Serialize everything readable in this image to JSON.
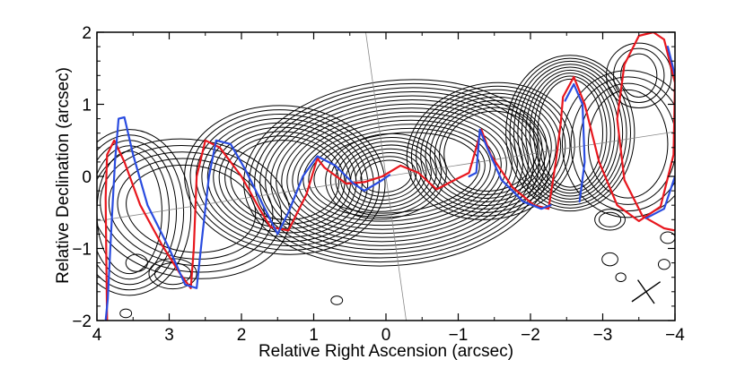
{
  "chart_data": {
    "type": "contour",
    "xlabel": "Relative Right Ascension (arcsec)",
    "ylabel": "Relative Declination (arcsec)",
    "xlim": [
      4,
      -4
    ],
    "ylim": [
      -2,
      2
    ],
    "x_ticks": [
      4,
      3,
      2,
      1,
      0,
      -1,
      -2,
      -3,
      -4
    ],
    "x_tick_labels": [
      "4",
      "3",
      "2",
      "1",
      "0",
      "−1",
      "−2",
      "−3",
      "−4"
    ],
    "y_ticks": [
      -2,
      -1,
      0,
      1,
      2
    ],
    "y_tick_labels": [
      "−2",
      "−1",
      "0",
      "1",
      "2"
    ],
    "grid": false,
    "colors": {
      "contours": "#000000",
      "model_red": "#e8171e",
      "model_blue": "#2a4ce0",
      "guide": "#888888"
    },
    "guide_lines": [
      {
        "points": [
          [
            0.28,
            2.0
          ],
          [
            -0.28,
            -2.0
          ]
        ]
      },
      {
        "points": [
          [
            4.0,
            -0.62
          ],
          [
            -4.0,
            0.62
          ]
        ]
      }
    ],
    "contour_groups": [
      {
        "name": "core",
        "cx": 0.0,
        "cy": 0.0,
        "rx": 0.35,
        "ry": 0.22,
        "angle": 8,
        "count": 8,
        "step": 0.07
      },
      {
        "name": "inner-jet",
        "cx": -0.15,
        "cy": 0.05,
        "rx": 1.15,
        "ry": 0.55,
        "angle": 6,
        "count": 14,
        "step": 0.075
      },
      {
        "name": "east-jet",
        "cx": 1.4,
        "cy": -0.05,
        "rx": 0.75,
        "ry": 0.55,
        "angle": -5,
        "count": 9,
        "step": 0.08
      },
      {
        "name": "west-knot",
        "cx": -1.45,
        "cy": 0.35,
        "rx": 0.65,
        "ry": 0.55,
        "angle": 12,
        "count": 9,
        "step": 0.065
      },
      {
        "name": "far-east",
        "cx": 2.7,
        "cy": -0.45,
        "rx": 0.9,
        "ry": 0.6,
        "angle": -8,
        "count": 5,
        "step": 0.12
      },
      {
        "name": "far-west",
        "cx": -2.55,
        "cy": 0.6,
        "rx": 0.45,
        "ry": 0.75,
        "angle": 0,
        "count": 9,
        "step": 0.055
      },
      {
        "name": "east-tail",
        "cx": 3.55,
        "cy": -0.5,
        "rx": 0.45,
        "ry": 0.85,
        "angle": 0,
        "count": 5,
        "step": 0.1
      },
      {
        "name": "west-tail",
        "cx": -3.35,
        "cy": 0.45,
        "rx": 0.55,
        "ry": 0.75,
        "angle": 0,
        "count": 4,
        "step": 0.12
      },
      {
        "name": "west-edge",
        "cx": -3.5,
        "cy": 1.4,
        "rx": 0.25,
        "ry": 0.3,
        "angle": 0,
        "count": 3,
        "step": 0.1
      },
      {
        "name": "blob-1",
        "cx": 2.95,
        "cy": -1.35,
        "rx": 0.25,
        "ry": 0.15,
        "angle": 0,
        "count": 2,
        "step": 0.08
      },
      {
        "name": "blob-2",
        "cx": 3.45,
        "cy": -1.2,
        "rx": 0.15,
        "ry": 0.12,
        "angle": 0,
        "count": 1,
        "step": 0.06
      },
      {
        "name": "blob-3",
        "cx": 0.68,
        "cy": -1.72,
        "rx": 0.08,
        "ry": 0.06,
        "angle": 0,
        "count": 1,
        "step": 0.04
      },
      {
        "name": "blob-4",
        "cx": 3.6,
        "cy": -1.9,
        "rx": 0.08,
        "ry": 0.06,
        "angle": 0,
        "count": 1,
        "step": 0.04
      },
      {
        "name": "blob-5",
        "cx": -3.1,
        "cy": -1.15,
        "rx": 0.11,
        "ry": 0.09,
        "angle": 0,
        "count": 1,
        "step": 0.04
      },
      {
        "name": "blob-6",
        "cx": -3.25,
        "cy": -1.4,
        "rx": 0.07,
        "ry": 0.06,
        "angle": 0,
        "count": 1,
        "step": 0.04
      },
      {
        "name": "blob-7",
        "cx": -3.85,
        "cy": -1.22,
        "rx": 0.08,
        "ry": 0.07,
        "angle": 0,
        "count": 1,
        "step": 0.04
      },
      {
        "name": "blob-8",
        "cx": -3.1,
        "cy": -0.6,
        "rx": 0.15,
        "ry": 0.1,
        "angle": 0,
        "count": 2,
        "step": 0.06
      },
      {
        "name": "blob-9",
        "cx": -3.9,
        "cy": -0.85,
        "rx": 0.1,
        "ry": 0.08,
        "angle": 0,
        "count": 1,
        "step": 0.04
      }
    ],
    "series": [
      {
        "color": "red",
        "points": [
          [
            3.86,
            -2.0
          ],
          [
            3.87,
            -1.2
          ],
          [
            3.88,
            -0.3
          ],
          [
            3.86,
            0.3
          ],
          [
            3.76,
            0.5
          ],
          [
            3.62,
            0.2
          ],
          [
            3.4,
            -0.4
          ],
          [
            3.1,
            -0.95
          ],
          [
            2.85,
            -1.35
          ],
          [
            2.7,
            -1.55
          ],
          [
            2.66,
            -1.0
          ],
          [
            2.62,
            0.0
          ],
          [
            2.5,
            0.5
          ],
          [
            2.3,
            0.4
          ],
          [
            2.0,
            0.0
          ],
          [
            1.75,
            -0.45
          ],
          [
            1.6,
            -0.7
          ],
          [
            1.35,
            -0.75
          ],
          [
            1.1,
            -0.25
          ],
          [
            0.95,
            0.25
          ],
          [
            0.85,
            0.12
          ],
          [
            0.55,
            -0.1
          ],
          [
            0.3,
            -0.08
          ],
          [
            0.05,
            0.0
          ],
          [
            -0.2,
            0.15
          ],
          [
            -0.45,
            0.05
          ],
          [
            -0.7,
            -0.18
          ],
          [
            -0.95,
            -0.05
          ],
          [
            -1.15,
            0.05
          ],
          [
            -1.32,
            0.65
          ],
          [
            -1.45,
            0.3
          ],
          [
            -1.75,
            -0.15
          ],
          [
            -2.05,
            -0.4
          ],
          [
            -2.25,
            -0.45
          ],
          [
            -2.35,
            0.2
          ],
          [
            -2.42,
            0.75
          ],
          [
            -2.45,
            1.1
          ],
          [
            -2.6,
            1.38
          ],
          [
            -2.75,
            1.0
          ],
          [
            -2.95,
            0.2
          ],
          [
            -3.2,
            -0.4
          ],
          [
            -3.5,
            -0.62
          ],
          [
            -3.8,
            -0.42
          ],
          [
            -3.98,
            0.3
          ],
          [
            -4.0,
            1.3
          ],
          [
            -3.85,
            1.9
          ],
          [
            -3.7,
            2.0
          ],
          [
            -3.5,
            1.95
          ],
          [
            -3.3,
            1.55
          ],
          [
            -3.2,
            0.8
          ],
          [
            -3.3,
            -0.05
          ],
          [
            -3.55,
            -0.55
          ],
          [
            -3.85,
            -0.72
          ],
          [
            -4.0,
            -0.75
          ]
        ]
      },
      {
        "color": "blue",
        "points": [
          [
            3.88,
            -2.0
          ],
          [
            3.85,
            -1.7
          ],
          [
            3.8,
            -0.7
          ],
          [
            3.75,
            0.2
          ],
          [
            3.7,
            0.8
          ],
          [
            3.62,
            0.82
          ],
          [
            3.5,
            0.3
          ],
          [
            3.3,
            -0.4
          ],
          [
            3.0,
            -1.0
          ],
          [
            2.78,
            -1.5
          ],
          [
            2.62,
            -1.55
          ],
          [
            2.55,
            -0.9
          ],
          [
            2.45,
            0.0
          ],
          [
            2.35,
            0.5
          ],
          [
            2.15,
            0.45
          ],
          [
            1.95,
            0.1
          ],
          [
            1.7,
            -0.4
          ],
          [
            1.5,
            -0.8
          ],
          [
            1.35,
            -0.5
          ],
          [
            1.15,
            0.0
          ],
          [
            0.95,
            0.28
          ],
          [
            0.7,
            0.15
          ],
          [
            0.45,
            -0.1
          ],
          [
            0.3,
            -0.2
          ],
          [
            0.05,
            -0.05
          ],
          [
            -0.05,
            0.02
          ]
        ]
      },
      {
        "color": "blue",
        "points": [
          [
            -1.15,
            0.0
          ],
          [
            -1.25,
            0.05
          ],
          [
            -1.3,
            0.65
          ],
          [
            -1.4,
            0.4
          ],
          [
            -1.6,
            -0.05
          ],
          [
            -1.9,
            -0.35
          ],
          [
            -2.15,
            -0.45
          ],
          [
            -2.28,
            -0.4
          ]
        ]
      },
      {
        "color": "blue",
        "points": [
          [
            -2.48,
            1.05
          ],
          [
            -2.6,
            1.28
          ],
          [
            -2.72,
            1.0
          ],
          [
            -2.75,
            0.2
          ],
          [
            -2.68,
            -0.35
          ]
        ]
      },
      {
        "color": "blue",
        "points": [
          [
            -3.6,
            -0.58
          ],
          [
            -3.85,
            -0.45
          ],
          [
            -4.0,
            0.0
          ]
        ]
      },
      {
        "color": "blue",
        "points": [
          [
            -3.9,
            1.8
          ],
          [
            -4.0,
            1.4
          ]
        ]
      }
    ],
    "beam": {
      "x": -3.6,
      "y": -1.6,
      "major": 0.24,
      "minor": 0.2,
      "angle_deg": 35
    }
  }
}
